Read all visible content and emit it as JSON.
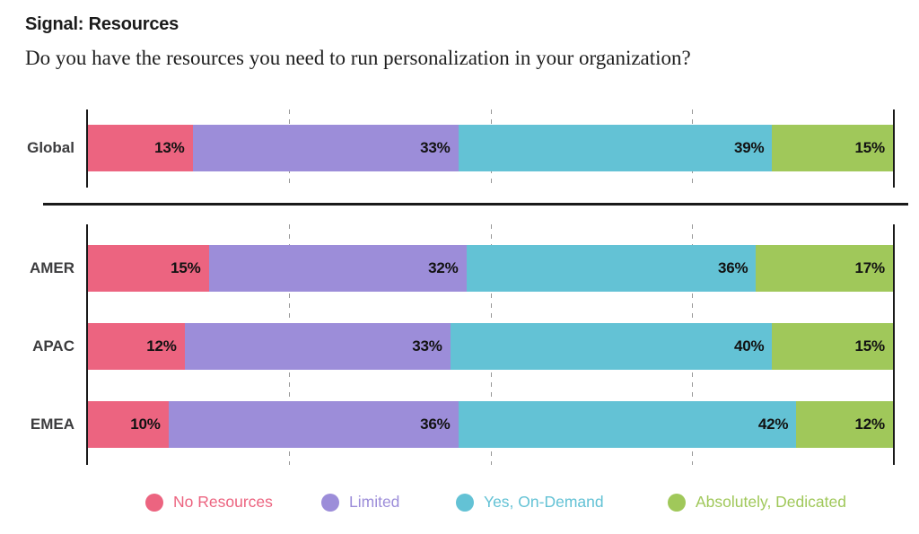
{
  "header": {
    "title": "Signal: Resources",
    "question": "Do you have the resources you need to run personalization in your organization?"
  },
  "chart_data": {
    "type": "bar",
    "orientation": "horizontal",
    "stacked": true,
    "unit": "%",
    "xlim": [
      0,
      100
    ],
    "gridlines_pct": [
      25,
      50,
      75
    ],
    "grid": "dashed-vertical",
    "legend_position": "bottom",
    "series": [
      {
        "name": "No Resources",
        "color": "#EC6480"
      },
      {
        "name": "Limited",
        "color": "#9C8DD9"
      },
      {
        "name": "Yes, On-Demand",
        "color": "#63C2D5"
      },
      {
        "name": "Absolutely, Dedicated",
        "color": "#A0C85A"
      }
    ],
    "groups": [
      {
        "name": "global",
        "rows": [
          {
            "label": "Global",
            "values": [
              13,
              33,
              39,
              15
            ]
          }
        ]
      },
      {
        "name": "regions",
        "rows": [
          {
            "label": "AMER",
            "values": [
              15,
              32,
              36,
              17
            ]
          },
          {
            "label": "APAC",
            "values": [
              12,
              33,
              40,
              15
            ]
          },
          {
            "label": "EMEA",
            "values": [
              10,
              36,
              42,
              12
            ]
          }
        ]
      }
    ]
  }
}
